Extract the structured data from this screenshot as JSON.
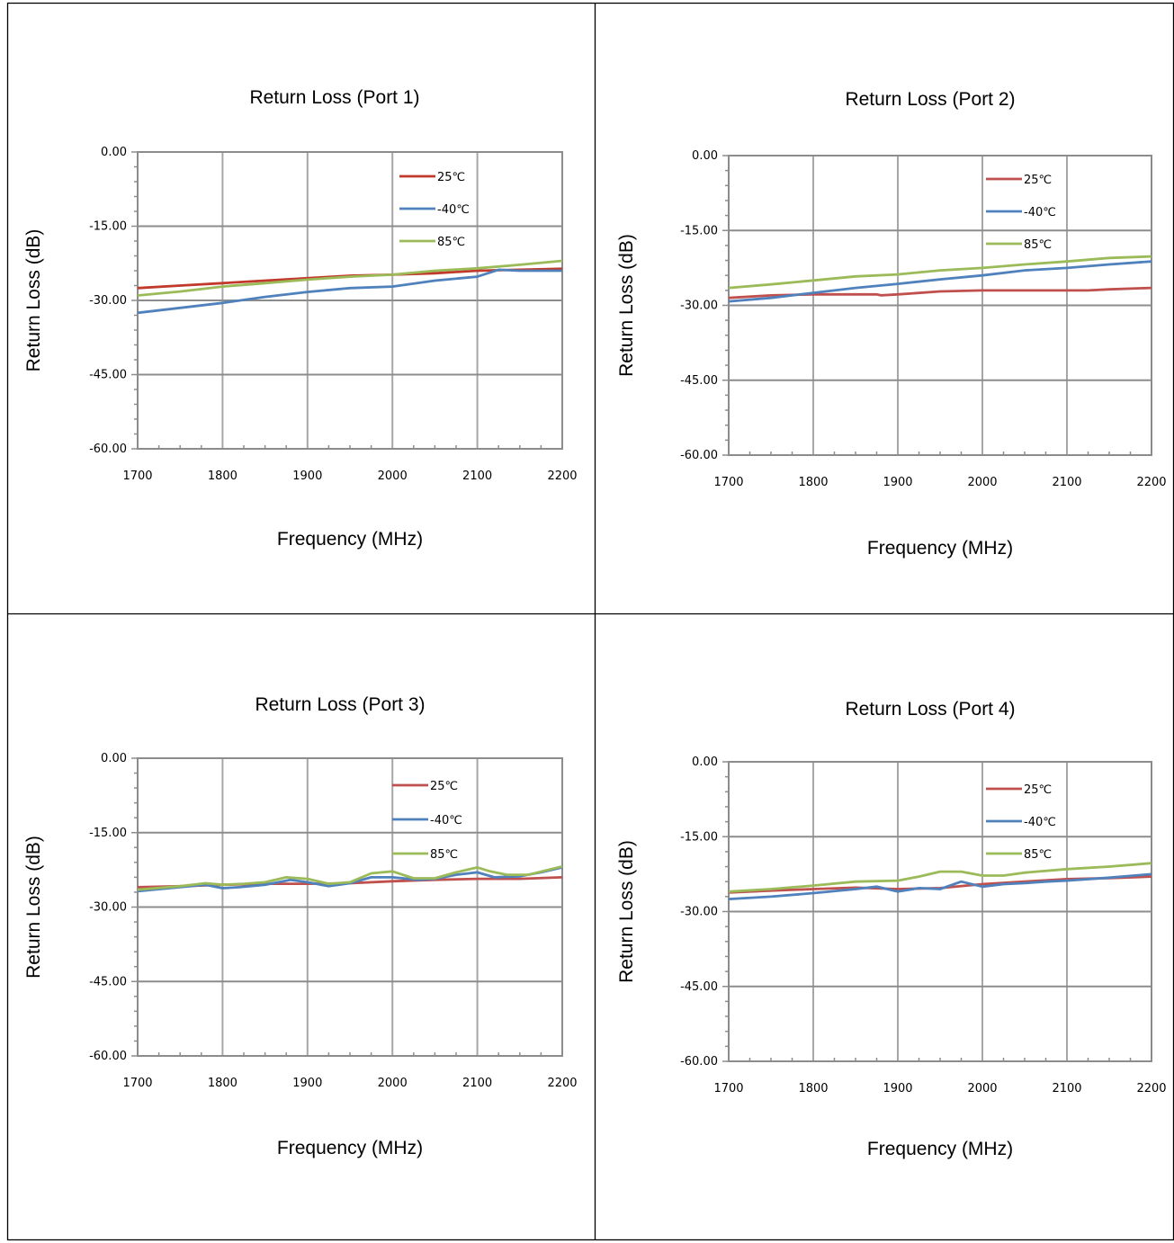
{
  "chart_data": [
    {
      "type": "line",
      "title": "Return Loss (Port 1)",
      "xlabel": "Frequency (MHz)",
      "ylabel": "Return Loss (dB)",
      "xlim": [
        1700,
        2200
      ],
      "ylim": [
        -60,
        0
      ],
      "xticks": [
        "1700",
        "1800",
        "1900",
        "2000",
        "2100",
        "2200"
      ],
      "yticks": [
        "0.00",
        "-15.00",
        "-30.00",
        "-45.00",
        "-60.00"
      ],
      "grid": true,
      "legend_position": "top-right",
      "series": [
        {
          "name": "25℃",
          "color": "#c0392b",
          "x": [
            1700,
            1750,
            1800,
            1850,
            1900,
            1950,
            2000,
            2050,
            2100,
            2150,
            2200
          ],
          "y": [
            -27.5,
            -27.0,
            -26.5,
            -26.0,
            -25.5,
            -25.0,
            -24.8,
            -24.5,
            -24.0,
            -23.8,
            -23.6
          ]
        },
        {
          "name": "-40℃",
          "color": "#4f81bd",
          "x": [
            1700,
            1750,
            1800,
            1850,
            1900,
            1950,
            2000,
            2050,
            2100,
            2125,
            2150,
            2200
          ],
          "y": [
            -32.5,
            -31.5,
            -30.5,
            -29.3,
            -28.3,
            -27.5,
            -27.2,
            -26.0,
            -25.2,
            -23.8,
            -24.0,
            -24.0
          ]
        },
        {
          "name": "85℃",
          "color": "#9bbb59",
          "x": [
            1700,
            1750,
            1800,
            1850,
            1900,
            1950,
            2000,
            2050,
            2100,
            2150,
            2200
          ],
          "y": [
            -29.0,
            -28.2,
            -27.2,
            -26.5,
            -25.8,
            -25.2,
            -24.8,
            -24.0,
            -23.5,
            -22.8,
            -22.0
          ]
        }
      ]
    },
    {
      "type": "line",
      "title": "Return Loss (Port 2)",
      "xlabel": "Frequency (MHz)",
      "ylabel": "Return Loss (dB)",
      "xlim": [
        1700,
        2200
      ],
      "ylim": [
        -60,
        0
      ],
      "xticks": [
        "1700",
        "1800",
        "1900",
        "2000",
        "2100",
        "2200"
      ],
      "yticks": [
        "0.00",
        "-15.00",
        "-30.00",
        "-45.00",
        "-60.00"
      ],
      "grid": true,
      "legend_position": "top-right",
      "series": [
        {
          "name": "25℃",
          "color": "#c0504d",
          "x": [
            1700,
            1750,
            1800,
            1825,
            1850,
            1875,
            1880,
            1900,
            1950,
            2000,
            2050,
            2100,
            2125,
            2150,
            2200
          ],
          "y": [
            -28.5,
            -28.0,
            -27.8,
            -27.8,
            -27.8,
            -27.8,
            -28.0,
            -27.8,
            -27.2,
            -27.0,
            -27.0,
            -27.0,
            -27.0,
            -26.8,
            -26.5
          ]
        },
        {
          "name": "-40℃",
          "color": "#4f81bd",
          "x": [
            1700,
            1750,
            1800,
            1850,
            1900,
            1950,
            2000,
            2050,
            2100,
            2150,
            2200
          ],
          "y": [
            -29.2,
            -28.5,
            -27.5,
            -26.5,
            -25.7,
            -24.8,
            -24.0,
            -23.0,
            -22.5,
            -21.8,
            -21.2
          ]
        },
        {
          "name": "85℃",
          "color": "#9bbb59",
          "x": [
            1700,
            1750,
            1800,
            1850,
            1900,
            1950,
            2000,
            2050,
            2100,
            2150,
            2200
          ],
          "y": [
            -26.5,
            -25.8,
            -25.0,
            -24.2,
            -23.8,
            -23.0,
            -22.5,
            -21.8,
            -21.2,
            -20.5,
            -20.2
          ]
        }
      ]
    },
    {
      "type": "line",
      "title": "Return Loss (Port 3)",
      "xlabel": "Frequency (MHz)",
      "ylabel": "Return Loss (dB)",
      "xlim": [
        1700,
        2200
      ],
      "ylim": [
        -60,
        0
      ],
      "xticks": [
        "1700",
        "1800",
        "1900",
        "2000",
        "2100",
        "2200"
      ],
      "yticks": [
        "0.00",
        "-15.00",
        "-30.00",
        "-45.00",
        "-60.00"
      ],
      "grid": true,
      "legend_position": "top-right",
      "series": [
        {
          "name": "25℃",
          "color": "#c0504d",
          "x": [
            1700,
            1750,
            1800,
            1850,
            1900,
            1950,
            2000,
            2050,
            2100,
            2150,
            2200
          ],
          "y": [
            -26.0,
            -25.8,
            -25.5,
            -25.3,
            -25.3,
            -25.2,
            -24.8,
            -24.5,
            -24.3,
            -24.3,
            -24.0
          ]
        },
        {
          "name": "-40℃",
          "color": "#4f81bd",
          "x": [
            1700,
            1750,
            1780,
            1800,
            1820,
            1850,
            1880,
            1900,
            1925,
            1950,
            1975,
            2000,
            2030,
            2050,
            2075,
            2100,
            2120,
            2150,
            2175,
            2200
          ],
          "y": [
            -26.8,
            -26.0,
            -25.5,
            -26.2,
            -26.0,
            -25.5,
            -24.5,
            -25.0,
            -25.8,
            -25.2,
            -24.0,
            -24.0,
            -24.5,
            -24.3,
            -23.5,
            -23.0,
            -24.0,
            -23.8,
            -23.0,
            -22.0
          ]
        },
        {
          "name": "85℃",
          "color": "#9bbb59",
          "x": [
            1700,
            1750,
            1780,
            1800,
            1825,
            1850,
            1875,
            1900,
            1925,
            1950,
            1975,
            2000,
            2025,
            2050,
            2075,
            2100,
            2115,
            2135,
            2160,
            2200
          ],
          "y": [
            -26.5,
            -25.8,
            -25.2,
            -25.5,
            -25.3,
            -25.0,
            -24.0,
            -24.3,
            -25.3,
            -25.0,
            -23.2,
            -22.8,
            -24.2,
            -24.2,
            -23.0,
            -22.0,
            -22.8,
            -23.5,
            -23.5,
            -21.8
          ]
        }
      ]
    },
    {
      "type": "line",
      "title": "Return Loss (Port 4)",
      "xlabel": "Frequency (MHz)",
      "ylabel": "Return Loss (dB)",
      "xlim": [
        1700,
        2200
      ],
      "ylim": [
        -60,
        0
      ],
      "xticks": [
        "1700",
        "1800",
        "1900",
        "2000",
        "2100",
        "2200"
      ],
      "yticks": [
        "0.00",
        "-15.00",
        "-30.00",
        "-45.00",
        "-60.00"
      ],
      "grid": true,
      "legend_position": "top-right",
      "series": [
        {
          "name": "25℃",
          "color": "#c0504d",
          "x": [
            1700,
            1750,
            1800,
            1850,
            1900,
            1950,
            2000,
            2050,
            2100,
            2150,
            2200
          ],
          "y": [
            -26.2,
            -25.8,
            -25.5,
            -25.2,
            -25.5,
            -25.3,
            -24.5,
            -24.0,
            -23.5,
            -23.3,
            -23.0
          ]
        },
        {
          "name": "-40℃",
          "color": "#4f81bd",
          "x": [
            1700,
            1750,
            1800,
            1850,
            1875,
            1900,
            1925,
            1950,
            1975,
            2000,
            2025,
            2050,
            2075,
            2100,
            2150,
            2200
          ],
          "y": [
            -27.5,
            -27.0,
            -26.3,
            -25.5,
            -25.0,
            -26.0,
            -25.3,
            -25.5,
            -24.0,
            -25.0,
            -24.5,
            -24.3,
            -24.0,
            -23.8,
            -23.2,
            -22.5
          ]
        },
        {
          "name": "85℃",
          "color": "#9bbb59",
          "x": [
            1700,
            1750,
            1800,
            1850,
            1900,
            1925,
            1950,
            1975,
            2000,
            2025,
            2050,
            2100,
            2150,
            2200
          ],
          "y": [
            -26.0,
            -25.5,
            -24.8,
            -24.0,
            -23.8,
            -23.0,
            -22.0,
            -22.0,
            -22.8,
            -22.8,
            -22.2,
            -21.5,
            -21.0,
            -20.3
          ]
        }
      ]
    }
  ]
}
